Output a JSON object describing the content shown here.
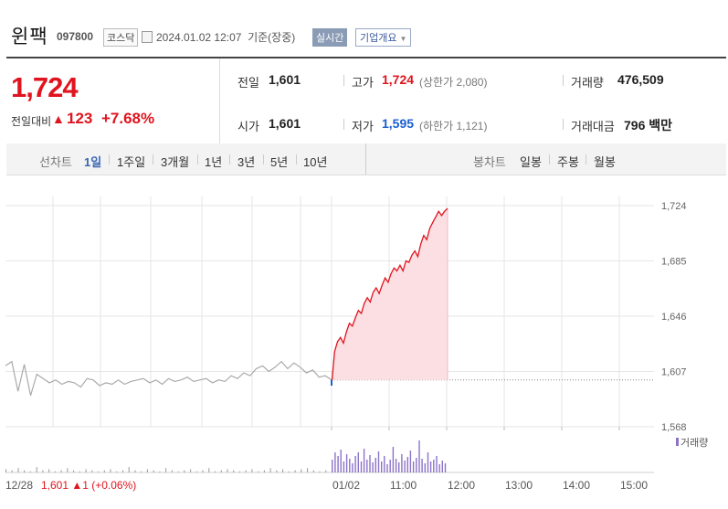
{
  "header": {
    "title": "윈팩",
    "code": "097800",
    "market": "코스닥",
    "datetime": "2024.01.02 12:07",
    "basis": "기준(장중)",
    "realtime_label": "실시간",
    "company_button": "기업개요"
  },
  "summary": {
    "price": "1,724",
    "change_label": "전일대비",
    "change_arrow": "▲",
    "change_value": "123",
    "change_pct": "+7.68%",
    "prev_close_label": "전일",
    "prev_close": "1,601",
    "open_label": "시가",
    "open": "1,601",
    "high_label": "고가",
    "high": "1,724",
    "upper_limit": "(상한가 2,080)",
    "low_label": "저가",
    "low": "1,595",
    "lower_limit": "(하한가 1,121)",
    "volume_label": "거래량",
    "volume": "476,509",
    "amount_label": "거래대금",
    "amount": "796",
    "amount_unit": "백만"
  },
  "tabs": {
    "line_label": "선차트",
    "periods": [
      "1일",
      "1주일",
      "3개월",
      "1년",
      "3년",
      "5년",
      "10년"
    ],
    "active_period": "1일",
    "candle_label": "봉차트",
    "candles": [
      "일봉",
      "주봉",
      "월봉"
    ]
  },
  "chart_data": {
    "type": "line",
    "title": "",
    "xlabel": "",
    "ylabel": "",
    "ylim": [
      1560,
      1730
    ],
    "y_ticks": [
      "1,724",
      "1,685",
      "1,646",
      "1,607",
      "1,568"
    ],
    "y_tick_values": [
      1724,
      1685,
      1646,
      1607,
      1568
    ],
    "x_ticks": [
      "01/02",
      "11:00",
      "12:00",
      "13:00",
      "14:00",
      "15:00"
    ],
    "baseline": 1601,
    "prev_day_label": "12/28",
    "prev_day_info": "1,601 ▲1 (+0.06%)",
    "volume_legend": "거래량",
    "colors": {
      "up": "#e0141e",
      "down": "#1a5fd0",
      "prev": "#aaaaaa",
      "fill": "#fbdfe2",
      "volume": "#8c73c8"
    },
    "prev_series": [
      1611,
      1614,
      1593,
      1612,
      1590,
      1605,
      1602,
      1599,
      1601,
      1598,
      1600,
      1599,
      1596,
      1602,
      1601,
      1597,
      1599,
      1598,
      1601,
      1598,
      1600,
      1601,
      1602,
      1599,
      1601,
      1598,
      1602,
      1600,
      1601,
      1603,
      1600,
      1601,
      1602,
      1599,
      1601,
      1600,
      1604,
      1602,
      1606,
      1604,
      1609,
      1611,
      1607,
      1610,
      1614,
      1609,
      1613,
      1610,
      1606,
      1608,
      1603,
      1604,
      1601
    ],
    "today_series": [
      1597,
      1621,
      1628,
      1631,
      1627,
      1635,
      1641,
      1639,
      1645,
      1650,
      1648,
      1655,
      1659,
      1656,
      1663,
      1666,
      1662,
      1668,
      1673,
      1670,
      1676,
      1680,
      1678,
      1682,
      1678,
      1685,
      1684,
      1689,
      1692,
      1688,
      1697,
      1703,
      1700,
      1708,
      1712,
      1716,
      1720,
      1717,
      1720,
      1722
    ],
    "prev_volume": [
      3,
      2,
      4,
      2,
      1,
      5,
      2,
      3,
      1,
      2,
      4,
      2,
      1,
      3,
      2,
      1,
      2,
      3,
      1,
      2,
      5,
      2,
      1,
      3,
      2,
      1,
      4,
      2,
      1,
      2,
      3,
      1,
      2,
      4,
      1,
      2,
      3,
      2,
      1,
      2,
      3,
      1,
      2,
      4,
      2,
      3,
      1,
      2,
      3,
      4,
      2,
      1,
      2
    ],
    "today_volume": [
      14,
      22,
      18,
      25,
      12,
      20,
      15,
      10,
      18,
      22,
      12,
      26,
      14,
      19,
      11,
      16,
      23,
      12,
      18,
      9,
      14,
      28,
      15,
      11,
      20,
      13,
      17,
      24,
      12,
      16,
      35,
      15,
      10,
      22,
      12,
      14,
      18,
      9,
      13,
      10
    ]
  }
}
